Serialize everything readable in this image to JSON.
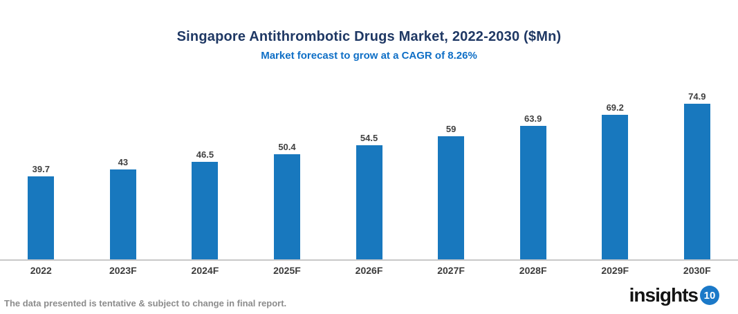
{
  "header": {
    "title": "Singapore Antithrombotic Drugs Market, 2022-2030 ($Mn)",
    "subtitle": "Market forecast to grow at a CAGR of 8.26%"
  },
  "chart_data": {
    "type": "bar",
    "title": "Singapore Antithrombotic Drugs Market, 2022-2030 ($Mn)",
    "subtitle": "Market forecast to grow at a CAGR of 8.26%",
    "categories": [
      "2022",
      "2023F",
      "2024F",
      "2025F",
      "2026F",
      "2027F",
      "2028F",
      "2029F",
      "2030F"
    ],
    "values": [
      39.7,
      43,
      46.5,
      50.4,
      54.5,
      59,
      63.9,
      69.2,
      74.9
    ],
    "value_labels": [
      "39.7",
      "43",
      "46.5",
      "50.4",
      "54.5",
      "59",
      "63.9",
      "69.2",
      "74.9"
    ],
    "xlabel": "",
    "ylabel": "",
    "ylim": [
      0,
      80
    ],
    "grid": false,
    "legend": "none",
    "bar_color": "#1878BE"
  },
  "footer": {
    "note": "The data presented is tentative & subject to change in final report.",
    "logo_text": "insights",
    "logo_badge": "10"
  },
  "colors": {
    "title": "#1F3864",
    "subtitle": "#0F6FC6",
    "bar": "#1878BE",
    "axis_line": "#C8C8C8",
    "value_label": "#404040",
    "tick_label": "#3B3B3B",
    "footer_note": "#8C8C8C",
    "logo_badge_bg": "#1B79C8"
  }
}
